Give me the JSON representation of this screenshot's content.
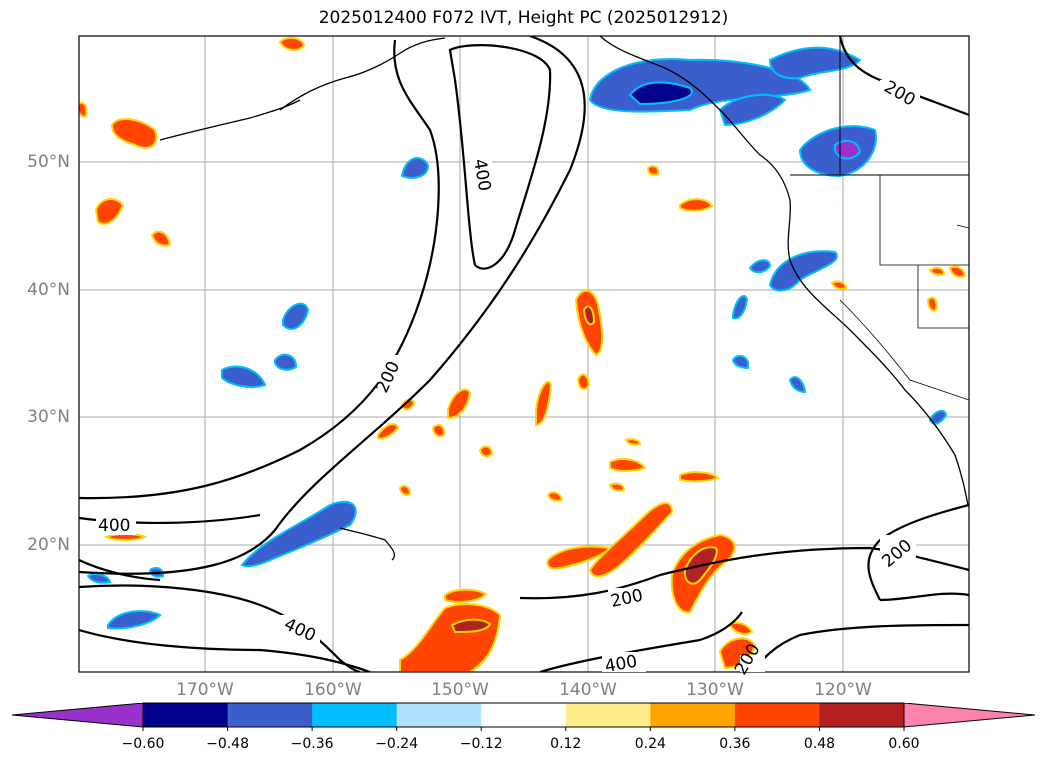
{
  "title": "2025012400 F072 IVT, Height PC (2025012912)",
  "lat_labels": [
    "50°N",
    "40°N",
    "30°N",
    "20°N"
  ],
  "lon_labels": [
    "170°W",
    "160°W",
    "150°W",
    "140°W",
    "130°W",
    "120°W"
  ],
  "contour_labels": [
    "400",
    "200",
    "400",
    "200",
    "200",
    "400",
    "200",
    "400",
    "200"
  ],
  "colorbar": {
    "colors": [
      "#9932cc",
      "#00008b",
      "#3a5fcd",
      "#00bfff",
      "#b0e2ff",
      "#ffffff",
      "#ffec8b",
      "#ffa500",
      "#ff4500",
      "#b22222",
      "#ff82ab"
    ],
    "labels": [
      "−0.60",
      "−0.48",
      "−0.36",
      "−0.24",
      "−0.12",
      "0.12",
      "0.24",
      "0.36",
      "0.48",
      "0.60"
    ]
  }
}
